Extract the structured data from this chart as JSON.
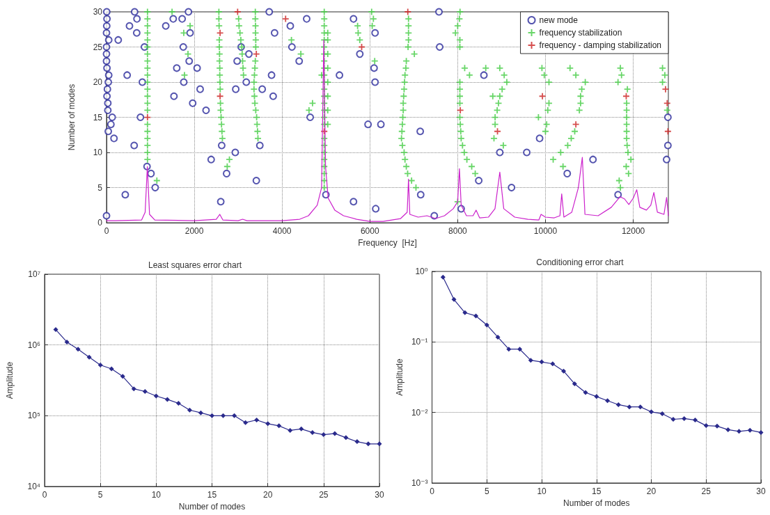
{
  "chart_data": [
    {
      "type": "scatter",
      "xlabel": "Frequency  [Hz]",
      "ylabel": "Number of modes",
      "xlim": [
        0,
        12800
      ],
      "xticks": [
        0,
        2000,
        4000,
        6000,
        8000,
        10000,
        12000
      ],
      "ylim": [
        0,
        30
      ],
      "yticks": [
        0,
        5,
        10,
        15,
        20,
        25,
        30
      ],
      "grid": true,
      "legend": "top right",
      "series": [
        {
          "name": "new mode",
          "color": "#2b2b9b",
          "marker": "circle",
          "x": [
            5,
            10,
            5,
            0,
            50,
            0,
            0,
            0,
            10,
            50,
            40,
            20,
            10,
            30,
            30,
            130,
            100,
            40,
            170,
            0,
            267,
            523,
            470,
            427,
            640,
            693,
            688,
            630,
            816,
            773,
            864,
            923,
            1013,
            1109,
            1350,
            1520,
            1723,
            1867,
            1904,
            1749,
            1883,
            1600,
            2064,
            1760,
            2133,
            1536,
            1963,
            2267,
            2384,
            2624,
            2603,
            2736,
            2933,
            2944,
            2976,
            3067,
            3243,
            3184,
            3413,
            3493,
            3547,
            3707,
            3829,
            3760,
            3797,
            4187,
            4224,
            4389,
            4560,
            4640,
            4998,
            5627,
            5627,
            5307,
            5771,
            6118,
            6096,
            6118,
            5958,
            6251,
            6133,
            7574,
            7590,
            7147,
            7158,
            7467,
            8080,
            8480,
            8598,
            8960,
            9227,
            9574,
            9867,
            10496,
            11083,
            11654,
            12790,
            12790,
            12760
          ],
          "values": [
            30,
            29,
            28,
            27,
            26,
            25,
            24,
            23,
            22,
            21,
            20,
            19,
            18,
            17,
            16,
            15,
            14,
            13,
            12,
            1,
            26,
            28,
            21,
            4,
            30,
            29,
            27,
            11,
            20,
            15,
            25,
            8,
            7,
            5,
            28,
            29,
            29,
            30,
            27,
            25,
            23,
            22,
            22,
            20,
            19,
            18,
            17,
            16,
            9,
            11,
            3,
            7,
            10,
            19,
            23,
            25,
            24,
            20,
            6,
            11,
            19,
            30,
            27,
            21,
            18,
            28,
            25,
            23,
            29,
            15,
            4,
            29,
            3,
            21,
            24,
            27,
            22,
            20,
            14,
            14,
            2,
            30,
            25,
            13,
            4,
            1,
            2,
            6,
            21,
            10,
            5,
            10,
            12,
            7,
            9,
            4,
            15,
            11,
            9
          ]
        },
        {
          "name": "frequency stabilization",
          "color": "#44cc44",
          "marker": "cross",
          "x": [
            933,
            933,
            933,
            933,
            933,
            933,
            933,
            933,
            933,
            933,
            933,
            933,
            933,
            933,
            933,
            933,
            933,
            933,
            933,
            933,
            933,
            1147,
            1493,
            1760,
            1904,
            1856,
            1776,
            2640,
            2630,
            2620,
            2610,
            2600,
            2595,
            2590,
            2585,
            2580,
            2580,
            2575,
            2575,
            2570,
            2570,
            2565,
            2560,
            2560,
            2750,
            2800,
            3120,
            3110,
            3100,
            3090,
            3080,
            3060,
            3040,
            3020,
            3010,
            3390,
            3390,
            3395,
            3395,
            3400,
            3400,
            3390,
            3380,
            3370,
            3360,
            3360,
            3370,
            3380,
            3400,
            3420,
            3430,
            3440,
            3450,
            4213,
            4427,
            4693,
            4613,
            4960,
            4960,
            4960,
            4960,
            4960,
            4960,
            4960,
            4960,
            4960,
            4960,
            4960,
            4960,
            4960,
            4960,
            4960,
            4960,
            4960,
            4960,
            4960,
            4960,
            4960,
            4960,
            4960,
            4960,
            4960,
            5040,
            5040,
            5040,
            5040,
            5040,
            5040,
            5040,
            5040,
            4900,
            5720,
            5733,
            5770,
            6040,
            6080,
            6053,
            6110,
            6880,
            6880,
            6880,
            6880,
            6870,
            7013,
            6830,
            6820,
            6800,
            6790,
            6780,
            6770,
            6760,
            6760,
            6750,
            6740,
            6730,
            6720,
            6740,
            6780,
            6800,
            6830,
            6860,
            6950,
            7050,
            8054,
            8040,
            8000,
            7950,
            8050,
            8050,
            8160,
            8270,
            8050,
            8050,
            8050,
            8050,
            8050,
            8060,
            8070,
            8080,
            8110,
            8150,
            8210,
            8320,
            8400,
            8000,
            8640,
            8960,
            9060,
            9120,
            9013,
            8960,
            8930,
            8900,
            8853,
            8853,
            8827,
            9040,
            8800,
            9920,
            9973,
            10080,
            10080,
            10053,
            9840,
            10027,
            10000,
            10560,
            10693,
            10907,
            10827,
            10800,
            10800,
            10773,
            10667,
            10587,
            10507,
            10347,
            10176,
            10400,
            11707,
            11733,
            11653,
            11867,
            11850,
            11850,
            11850,
            11850,
            11850,
            11850,
            11860,
            11880,
            11947,
            11840,
            11893,
            11680,
            11707,
            12667,
            12720,
            12667,
            12773
          ],
          "values": [
            9,
            10,
            11,
            12,
            13,
            14,
            16,
            17,
            18,
            19,
            20,
            21,
            22,
            23,
            24,
            25,
            26,
            27,
            28,
            29,
            30,
            6,
            30,
            27,
            28,
            24,
            21,
            12,
            13,
            14,
            15,
            16,
            17,
            19,
            20,
            21,
            22,
            23,
            24,
            25,
            26,
            28,
            29,
            30,
            8,
            9,
            21,
            22,
            23,
            24,
            25,
            26,
            27,
            28,
            29,
            30,
            29,
            28,
            27,
            26,
            25,
            23,
            22,
            21,
            20,
            19,
            18,
            17,
            16,
            15,
            14,
            13,
            12,
            26,
            24,
            17,
            16,
            5,
            6,
            7,
            8,
            9,
            10,
            11,
            12,
            14,
            15,
            16,
            17,
            18,
            19,
            20,
            21,
            22,
            23,
            24,
            25,
            26,
            27,
            28,
            29,
            30,
            14,
            16,
            18,
            20,
            22,
            24,
            26,
            27,
            21,
            28,
            27,
            26,
            30,
            29,
            28,
            23,
            29,
            28,
            27,
            26,
            25,
            24,
            23,
            22,
            21,
            20,
            19,
            18,
            17,
            16,
            15,
            14,
            13,
            12,
            11,
            10,
            9,
            8,
            7,
            6,
            5,
            30,
            29,
            28,
            27,
            26,
            25,
            22,
            21,
            20,
            19,
            18,
            17,
            15,
            14,
            13,
            12,
            11,
            10,
            9,
            8,
            7,
            3,
            22,
            22,
            21,
            20,
            19,
            18,
            17,
            16,
            15,
            14,
            12,
            11,
            18,
            22,
            21,
            20,
            17,
            16,
            15,
            14,
            13,
            22,
            21,
            20,
            19,
            18,
            17,
            16,
            13,
            12,
            11,
            10,
            9,
            8,
            22,
            21,
            20,
            19,
            17,
            16,
            15,
            14,
            13,
            12,
            11,
            10,
            9,
            8,
            7,
            6,
            5,
            22,
            21,
            20,
            16
          ]
        },
        {
          "name": "frequency - damping stabilization",
          "color": "#cc2222",
          "marker": "cross",
          "x": [
            933,
            2587,
            2587,
            2987,
            3413,
            4080,
            4960,
            5813,
            6864,
            8060,
            8907,
            9931,
            10693,
            11840,
            12736,
            12773,
            12790
          ],
          "values": [
            15,
            27,
            18,
            30,
            24,
            29,
            13,
            25,
            30,
            16,
            13,
            18,
            14,
            18,
            19,
            17,
            13
          ]
        },
        {
          "type": "line",
          "color": "#cc22cc",
          "marker": "none",
          "x": [
            0,
            200,
            800,
            880,
            930,
            980,
            1100,
            2000,
            2500,
            2580,
            2650,
            3000,
            3100,
            3200,
            4000,
            4400,
            4600,
            4800,
            4900,
            4950,
            4990,
            5050,
            5200,
            5400,
            5700,
            6000,
            6300,
            6500,
            6700,
            6850,
            6880,
            6910,
            7100,
            7300,
            7500,
            7700,
            7900,
            8000,
            8040,
            8080,
            8200,
            8350,
            8420,
            8500,
            8700,
            8850,
            8960,
            9050,
            9300,
            9600,
            9850,
            9900,
            10000,
            10200,
            10330,
            10370,
            10420,
            10600,
            10750,
            10840,
            10900,
            11200,
            11500,
            11700,
            11800,
            11900,
            12000,
            12080,
            12150,
            12300,
            12400,
            12470,
            12550,
            12700,
            12760,
            12800
          ],
          "values": [
            0.3,
            0.3,
            0.4,
            1.5,
            8,
            1.2,
            0.4,
            0.3,
            0.5,
            1.2,
            0.4,
            0.3,
            0.5,
            0.3,
            0.3,
            0.5,
            1,
            2.5,
            5,
            26,
            8,
            3.5,
            1.8,
            1,
            0.5,
            0.2,
            0.2,
            0.4,
            0.6,
            1.5,
            6.2,
            1.2,
            0.8,
            1,
            0.6,
            1,
            2,
            3,
            7.7,
            2.5,
            1,
            1,
            1.8,
            0.7,
            0.8,
            2,
            7.2,
            2,
            0.8,
            0.5,
            0.4,
            1.2,
            0.8,
            0.7,
            1,
            4.1,
            0.8,
            1.5,
            5,
            9.3,
            1.2,
            1,
            2.2,
            3.7,
            3.4,
            2.6,
            3.5,
            4.7,
            2.2,
            1.8,
            2.5,
            4.3,
            1.5,
            1.2,
            3.6,
            1.0
          ]
        }
      ]
    },
    {
      "type": "line",
      "title": "Least squares error chart",
      "xlabel": "Number of modes",
      "ylabel": "Amplitude",
      "log": "y",
      "xlim": [
        0,
        30
      ],
      "xticks": [
        0,
        5,
        10,
        15,
        20,
        25,
        30
      ],
      "ylim": [
        10000,
        10000000
      ],
      "yticks": [
        {
          "value": 10000,
          "label": "10⁴"
        },
        {
          "value": 100000,
          "label": "10⁵"
        },
        {
          "value": 1000000,
          "label": "10⁶"
        },
        {
          "value": 10000000,
          "label": "10⁷"
        }
      ],
      "grid": true,
      "marker": "diamond",
      "x": [
        1,
        2,
        3,
        4,
        5,
        6,
        7,
        8,
        9,
        10,
        11,
        12,
        13,
        14,
        15,
        16,
        17,
        18,
        19,
        20,
        21,
        22,
        23,
        24,
        25,
        26,
        27,
        28,
        29,
        30
      ],
      "series": [
        {
          "color": "#2a2a8c",
          "values": [
            1650000,
            1100000,
            870000,
            670000,
            520000,
            460000,
            360000,
            240000,
            220000,
            190000,
            170000,
            150000,
            120000,
            110000,
            100000,
            100000,
            100000,
            80000,
            87000,
            77000,
            72000,
            62000,
            65000,
            58000,
            54000,
            56000,
            49000,
            43000,
            40000,
            40000
          ]
        }
      ]
    },
    {
      "type": "line",
      "title": "Conditioning error chart",
      "xlabel": "Number of modes",
      "ylabel": "Amplitude",
      "log": "y",
      "xlim": [
        0,
        30
      ],
      "xticks": [
        0,
        5,
        10,
        15,
        20,
        25,
        30
      ],
      "ylim": [
        0.001,
        1
      ],
      "yticks": [
        {
          "value": 0.001,
          "label": "10⁻³"
        },
        {
          "value": 0.01,
          "label": "10⁻²"
        },
        {
          "value": 0.1,
          "label": "10⁻¹"
        },
        {
          "value": 1,
          "label": "10⁰"
        }
      ],
      "grid": true,
      "marker": "diamond",
      "x": [
        1,
        2,
        3,
        4,
        5,
        6,
        7,
        8,
        9,
        10,
        11,
        12,
        13,
        14,
        15,
        16,
        17,
        18,
        19,
        20,
        21,
        22,
        23,
        24,
        25,
        26,
        27,
        28,
        29,
        30
      ],
      "series": [
        {
          "color": "#2a2a8c",
          "values": [
            0.83,
            0.4,
            0.26,
            0.234,
            0.174,
            0.117,
            0.079,
            0.079,
            0.055,
            0.052,
            0.049,
            0.0386,
            0.0255,
            0.0192,
            0.0168,
            0.0147,
            0.0129,
            0.012,
            0.012,
            0.0102,
            0.0096,
            0.008,
            0.0082,
            0.0078,
            0.0065,
            0.0064,
            0.0057,
            0.0054,
            0.0056,
            0.0052
          ]
        }
      ]
    }
  ]
}
